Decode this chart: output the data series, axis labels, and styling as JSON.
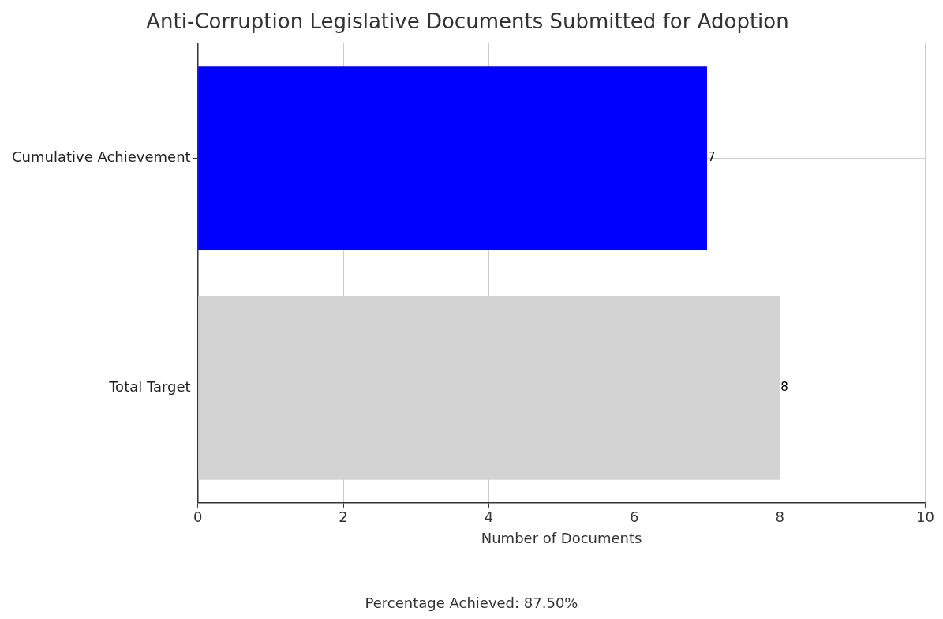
{
  "chart_data": {
    "type": "bar",
    "orientation": "horizontal",
    "title": "Anti-Corruption Legislative Documents Submitted for Adoption",
    "xlabel": "Number of Documents",
    "categories": [
      "Cumulative Achievement",
      "Total Target"
    ],
    "values": [
      7,
      8
    ],
    "colors": [
      "#0000ff",
      "#d3d3d3"
    ],
    "xlim": [
      0,
      10
    ],
    "xticks": [
      0,
      2,
      4,
      6,
      8,
      10
    ],
    "grid": true,
    "data_labels": true,
    "annotations": [
      "Percentage Achieved: 87.50%"
    ]
  }
}
